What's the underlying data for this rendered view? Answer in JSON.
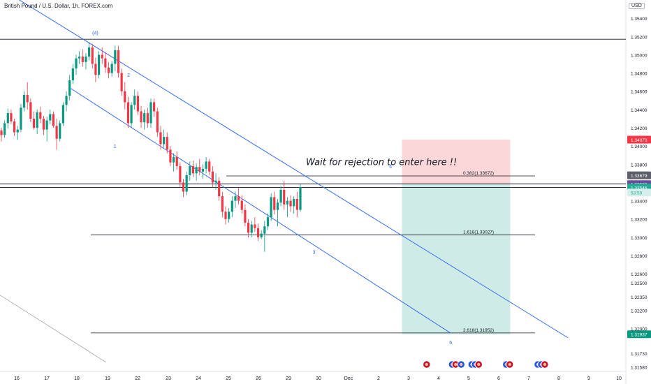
{
  "header": {
    "title": "British Pound / U.S. Dollar, 1h, FOREX.com",
    "currency": "USD"
  },
  "chart_data": {
    "type": "candlestick",
    "ylim": [
      1.3153,
      1.356
    ],
    "y_ticks": [
      "1.35400",
      "1.35200",
      "1.35000",
      "1.34800",
      "1.34600",
      "1.34400",
      "1.34200",
      "1.34000",
      "1.33800",
      "1.33600",
      "1.33400",
      "1.33200",
      "1.33000",
      "1.32800",
      "1.32600",
      "1.32500",
      "1.32350",
      "1.32200",
      "1.32000",
      "1.31730",
      "1.31580"
    ],
    "x_ticks": [
      "16",
      "17",
      "18",
      "19",
      "22",
      "23",
      "24",
      "25",
      "26",
      "29",
      "30",
      "Dec",
      "2",
      "3",
      "4",
      "5",
      "6",
      "7",
      "8",
      "9",
      "10"
    ],
    "price_badges": [
      {
        "label": "1.34070",
        "value": 1.3407,
        "color": "#f23645"
      },
      {
        "label": "1.33679",
        "value": 1.33679,
        "color": "#5d606b"
      },
      {
        "label": "1.33582",
        "value": 1.33582,
        "color": "#6a4c9c"
      },
      {
        "label": "1.33546",
        "value": 1.33546,
        "color": "#22ab94"
      },
      {
        "label": "53:59",
        "value": 1.3349,
        "color": "#d5f0eb",
        "text_color": "#22ab94"
      },
      {
        "label": "1.31937",
        "value": 1.31937,
        "color": "#089981"
      }
    ],
    "fib_levels": [
      {
        "label": "0.382(1.33672)",
        "value": 1.33672
      },
      {
        "label": "1.618(1.33027)",
        "value": 1.33027
      },
      {
        "label": "2.618(1.31952)",
        "value": 1.31952
      }
    ],
    "horizontal_lines": [
      1.3517,
      1.33585,
      1.33546
    ],
    "wave_labels": [
      {
        "label": "(4)",
        "x": 18.6,
        "y": 1.3522
      },
      {
        "label": "2",
        "x": 19.7,
        "y": 1.3476
      },
      {
        "label": "1",
        "x": 19.25,
        "y": 1.3398
      },
      {
        "label": "4",
        "x": 28.4,
        "y": 1.3376
      },
      {
        "label": "3",
        "x": 25.85,
        "y": 1.3282
      },
      {
        "label": "5",
        "x": 30.4,
        "y": 1.3183
      }
    ],
    "channel_lines": [
      {
        "from": [
          15.5,
          1.3572
        ],
        "to": [
          34.3,
          1.319
        ]
      },
      {
        "from": [
          17.8,
          1.3463
        ],
        "to": [
          30.4,
          1.3195
        ]
      },
      {
        "from": [
          15.0,
          1.3246
        ],
        "to": [
          18.95,
          1.3163
        ]
      }
    ],
    "position_tool": {
      "type": "short",
      "x_start": 28.78,
      "x_end": 32.38,
      "stop": 1.3407,
      "entry": 1.33582,
      "target": 1.31937
    },
    "annotation": "Wait for rejection to enter here !!",
    "candles": [
      [
        1.3417,
        1.342,
        1.3405,
        1.3412
      ],
      [
        1.3412,
        1.3428,
        1.3409,
        1.3425
      ],
      [
        1.3425,
        1.3441,
        1.3419,
        1.3436
      ],
      [
        1.3436,
        1.344,
        1.3424,
        1.3427
      ],
      [
        1.3427,
        1.343,
        1.3411,
        1.3415
      ],
      [
        1.3415,
        1.3422,
        1.3407,
        1.3418
      ],
      [
        1.3418,
        1.3446,
        1.3415,
        1.3442
      ],
      [
        1.3442,
        1.346,
        1.3438,
        1.3456
      ],
      [
        1.3456,
        1.347,
        1.344,
        1.3448
      ],
      [
        1.3448,
        1.3452,
        1.3426,
        1.343
      ],
      [
        1.343,
        1.3438,
        1.3418,
        1.342
      ],
      [
        1.342,
        1.344,
        1.3413,
        1.3437
      ],
      [
        1.3437,
        1.3443,
        1.3425,
        1.343
      ],
      [
        1.343,
        1.3433,
        1.3412,
        1.3418
      ],
      [
        1.3418,
        1.3432,
        1.3405,
        1.3428
      ],
      [
        1.3428,
        1.344,
        1.3424,
        1.3435
      ],
      [
        1.3435,
        1.3438,
        1.342,
        1.3422
      ],
      [
        1.3422,
        1.343,
        1.3396,
        1.3408
      ],
      [
        1.3408,
        1.3428,
        1.3405,
        1.3425
      ],
      [
        1.3425,
        1.3448,
        1.3422,
        1.3445
      ],
      [
        1.3445,
        1.346,
        1.3438,
        1.3455
      ],
      [
        1.3455,
        1.3478,
        1.345,
        1.3472
      ],
      [
        1.3472,
        1.349,
        1.3468,
        1.3485
      ],
      [
        1.3485,
        1.35,
        1.3478,
        1.3496
      ],
      [
        1.3496,
        1.3504,
        1.349,
        1.3498
      ],
      [
        1.3498,
        1.3506,
        1.3487,
        1.3492
      ],
      [
        1.3492,
        1.3502,
        1.3484,
        1.3498
      ],
      [
        1.3498,
        1.3514,
        1.3494,
        1.3508
      ],
      [
        1.3508,
        1.3512,
        1.3485,
        1.349
      ],
      [
        1.349,
        1.3497,
        1.347,
        1.3478
      ],
      [
        1.3478,
        1.3504,
        1.3474,
        1.35
      ],
      [
        1.35,
        1.3508,
        1.349,
        1.3496
      ],
      [
        1.3496,
        1.3503,
        1.348,
        1.3486
      ],
      [
        1.3486,
        1.3492,
        1.3474,
        1.348
      ],
      [
        1.348,
        1.3493,
        1.3476,
        1.349
      ],
      [
        1.349,
        1.351,
        1.3482,
        1.3505
      ],
      [
        1.3505,
        1.351,
        1.3475,
        1.348
      ],
      [
        1.348,
        1.3485,
        1.3455,
        1.346
      ],
      [
        1.346,
        1.347,
        1.344,
        1.3448
      ],
      [
        1.3448,
        1.3454,
        1.342,
        1.3425
      ],
      [
        1.3425,
        1.3448,
        1.342,
        1.3445
      ],
      [
        1.3445,
        1.3462,
        1.344,
        1.3455
      ],
      [
        1.3455,
        1.346,
        1.3434,
        1.3438
      ],
      [
        1.3438,
        1.3444,
        1.342,
        1.3426
      ],
      [
        1.3426,
        1.344,
        1.3418,
        1.3436
      ],
      [
        1.3436,
        1.3442,
        1.342,
        1.3425
      ],
      [
        1.3425,
        1.3452,
        1.342,
        1.3448
      ],
      [
        1.3448,
        1.3452,
        1.3432,
        1.3438
      ],
      [
        1.3438,
        1.3442,
        1.341,
        1.3415
      ],
      [
        1.3415,
        1.3422,
        1.3396,
        1.3402
      ],
      [
        1.3402,
        1.3418,
        1.3398,
        1.341
      ],
      [
        1.341,
        1.3415,
        1.3392,
        1.3396
      ],
      [
        1.3396,
        1.34,
        1.3378,
        1.3382
      ],
      [
        1.3382,
        1.3392,
        1.3372,
        1.3388
      ],
      [
        1.3388,
        1.3394,
        1.3374,
        1.3378
      ],
      [
        1.3378,
        1.3382,
        1.3355,
        1.336
      ],
      [
        1.336,
        1.3364,
        1.3344,
        1.335
      ],
      [
        1.335,
        1.3372,
        1.3346,
        1.3368
      ],
      [
        1.3368,
        1.3383,
        1.3362,
        1.3378
      ],
      [
        1.3378,
        1.3384,
        1.3366,
        1.337
      ],
      [
        1.337,
        1.3381,
        1.3362,
        1.3377
      ],
      [
        1.3377,
        1.3386,
        1.3368,
        1.3372
      ],
      [
        1.3372,
        1.338,
        1.3364,
        1.3375
      ],
      [
        1.3375,
        1.3388,
        1.337,
        1.3383
      ],
      [
        1.3383,
        1.3386,
        1.3368,
        1.3372
      ],
      [
        1.3372,
        1.3378,
        1.3355,
        1.336
      ],
      [
        1.336,
        1.337,
        1.3352,
        1.3362
      ],
      [
        1.3362,
        1.3366,
        1.334,
        1.3345
      ],
      [
        1.3345,
        1.335,
        1.3322,
        1.3328
      ],
      [
        1.3328,
        1.3334,
        1.3314,
        1.332
      ],
      [
        1.332,
        1.3332,
        1.3316,
        1.3328
      ],
      [
        1.3328,
        1.3345,
        1.3322,
        1.334
      ],
      [
        1.334,
        1.335,
        1.3332,
        1.3345
      ],
      [
        1.3345,
        1.3354,
        1.3336,
        1.334
      ],
      [
        1.334,
        1.3346,
        1.3326,
        1.333
      ],
      [
        1.333,
        1.3336,
        1.3312,
        1.3316
      ],
      [
        1.3316,
        1.332,
        1.33,
        1.3305
      ],
      [
        1.3305,
        1.3318,
        1.33,
        1.3314
      ],
      [
        1.3314,
        1.3322,
        1.3306,
        1.331
      ],
      [
        1.331,
        1.3315,
        1.3296,
        1.33
      ],
      [
        1.33,
        1.3308,
        1.3298,
        1.3304
      ],
      [
        1.3304,
        1.3318,
        1.3284,
        1.3312
      ],
      [
        1.3312,
        1.3326,
        1.3308,
        1.3322
      ],
      [
        1.3322,
        1.3348,
        1.3318,
        1.3344
      ],
      [
        1.3344,
        1.335,
        1.3325,
        1.333
      ],
      [
        1.333,
        1.3342,
        1.3312,
        1.3338
      ],
      [
        1.3338,
        1.3356,
        1.3334,
        1.3352
      ],
      [
        1.3352,
        1.3362,
        1.333,
        1.3336
      ],
      [
        1.3336,
        1.3344,
        1.3322,
        1.334
      ],
      [
        1.334,
        1.3346,
        1.3328,
        1.3334
      ],
      [
        1.3334,
        1.3345,
        1.3326,
        1.3342
      ],
      [
        1.3342,
        1.335,
        1.3322,
        1.333
      ],
      [
        1.333,
        1.3358,
        1.3328,
        1.3355
      ]
    ]
  },
  "event_icons": [
    {
      "x": 29.6,
      "flags": [
        "uk"
      ]
    },
    {
      "x": 30.45,
      "flags": [
        "us",
        "uk"
      ]
    },
    {
      "x": 30.75,
      "flags": [
        "us"
      ]
    },
    {
      "x": 31.1,
      "flags": [
        "us",
        "us",
        "uk"
      ]
    },
    {
      "x": 32.25,
      "flags": [
        "us",
        "uk"
      ]
    },
    {
      "x": 33.3,
      "flags": [
        "us",
        "us",
        "uk"
      ]
    }
  ],
  "colors": {
    "up": "#089981",
    "down": "#f23645",
    "channel": "#2962ff",
    "target_zone": "rgba(8,153,129,0.20)",
    "stop_zone": "rgba(242,54,69,0.20)"
  }
}
